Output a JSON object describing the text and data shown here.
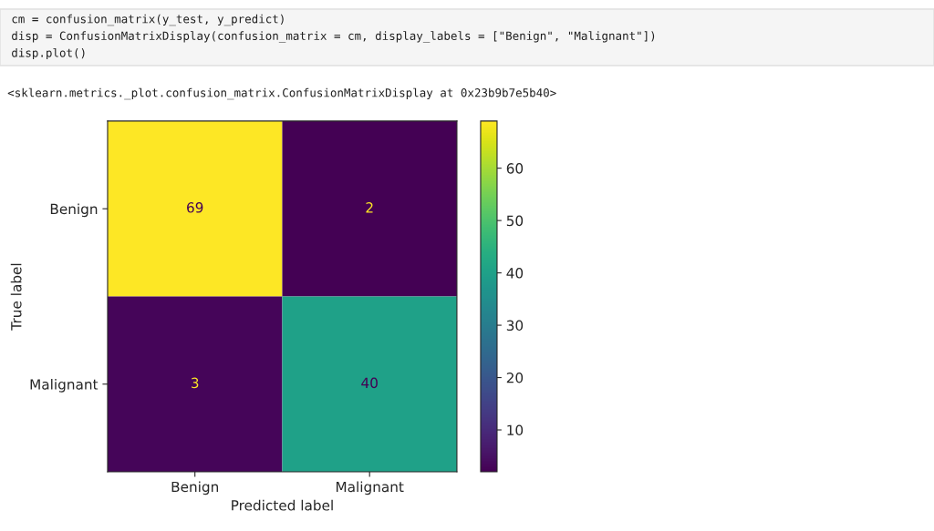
{
  "chart_data": {
    "type": "heatmap",
    "xlabel": "Predicted label",
    "ylabel": "True label",
    "categories": [
      "Benign",
      "Malignant"
    ],
    "y_categories": [
      "Benign",
      "Malignant"
    ],
    "cells": [
      [
        69,
        2
      ],
      [
        3,
        40
      ]
    ],
    "data_labels": true,
    "clim": [
      2,
      69
    ],
    "cticks": [
      10,
      20,
      30,
      40,
      50,
      60
    ],
    "grid": false,
    "annotations": [
      "cm = confusion_matrix(y_test, y_predict)",
      "disp = ConfusionMatrixDisplay(confusion_matrix = cm, display_labels = [\"Benign\", \"Malignant\"])",
      "disp.plot()",
      "<sklearn.metrics._plot.confusion_matrix.ConfusionMatrixDisplay at 0x23b9b7e5b40>"
    ]
  }
}
